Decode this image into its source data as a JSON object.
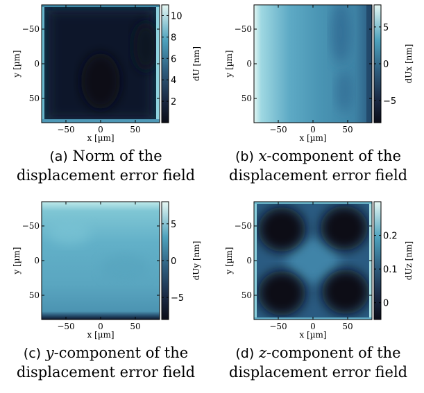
{
  "chart_data": [
    {
      "type": "heatmap",
      "caption": {
        "tag": "(a)",
        "line1": "Norm of the",
        "line2": "displacement error field"
      },
      "xlabel": "x [µm]",
      "ylabel": "y [µm]",
      "colorbar": {
        "label": "dU [nm]",
        "ticks": [
          2,
          4,
          6,
          8,
          10
        ],
        "range": [
          0,
          11
        ]
      },
      "x_ticks": [
        -50,
        0,
        50
      ],
      "y_ticks": [
        -50,
        0,
        50
      ],
      "xlim": [
        -85,
        85
      ],
      "ylim": [
        -85,
        85
      ],
      "y_reversed": true,
      "pattern": "edges"
    },
    {
      "type": "heatmap",
      "caption": {
        "tag": "(b)",
        "var": "x",
        "line1": "-component of the",
        "line2": "displacement error field"
      },
      "xlabel": "x [µm]",
      "ylabel": "y [µm]",
      "colorbar": {
        "label": "dUx [nm]",
        "ticks": [
          5,
          0,
          -5
        ],
        "range": [
          -8,
          8
        ]
      },
      "x_ticks": [
        -50,
        0,
        50
      ],
      "y_ticks": [
        -50,
        0,
        50
      ],
      "xlim": [
        -85,
        85
      ],
      "ylim": [
        -85,
        85
      ],
      "y_reversed": true,
      "pattern": "x-gradient"
    },
    {
      "type": "heatmap",
      "caption": {
        "tag": "(c)",
        "var": "y",
        "line1": "-component of the",
        "line2": "displacement error field"
      },
      "xlabel": "x [µm]",
      "ylabel": "y [µm]",
      "colorbar": {
        "label": "dUy [nm]",
        "ticks": [
          5,
          0,
          -5
        ],
        "range": [
          -8,
          8
        ]
      },
      "x_ticks": [
        -50,
        0,
        50
      ],
      "y_ticks": [
        -50,
        0,
        50
      ],
      "xlim": [
        -85,
        85
      ],
      "ylim": [
        -85,
        85
      ],
      "y_reversed": true,
      "pattern": "y-gradient"
    },
    {
      "type": "heatmap",
      "caption": {
        "tag": "(d)",
        "var": "z",
        "line1": "-component of the",
        "line2": "displacement error field"
      },
      "xlabel": "x [µm]",
      "ylabel": "y [µm]",
      "colorbar": {
        "label": "dUz [nm]",
        "ticks": [
          0.2,
          0.1,
          0
        ],
        "range": [
          -0.05,
          0.3
        ]
      },
      "x_ticks": [
        -50,
        0,
        50
      ],
      "y_ticks": [
        -50,
        0,
        50
      ],
      "xlim": [
        -85,
        85
      ],
      "ylim": [
        -85,
        85
      ],
      "y_reversed": true,
      "pattern": "quad"
    }
  ]
}
